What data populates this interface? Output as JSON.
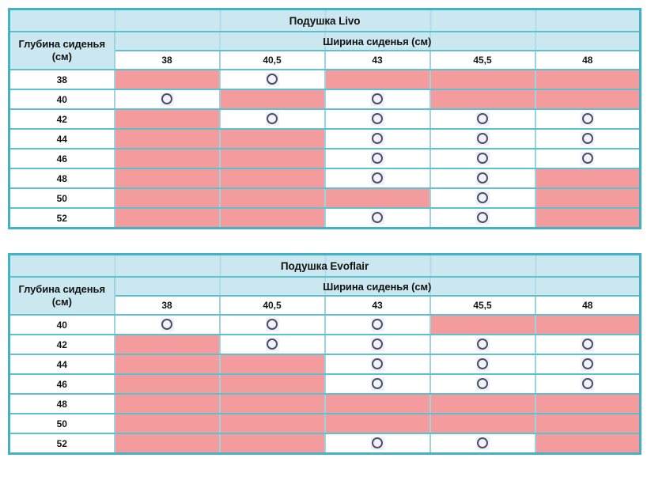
{
  "colors": {
    "header_bg": "#cbe7f0",
    "unavailable_bg": "#f49b9e",
    "border_outer": "#43b2c4",
    "border_inner_horizontal": "#5cc2cf",
    "border_inner_vertical": "#9bd4de",
    "circle_border": "#4f4f63",
    "circle_fill": "#f1f2fb",
    "text": "#131313"
  },
  "legend": {
    "available_marker": "circle-outline",
    "unavailable_marker": "pink-filled-cell"
  },
  "tables": [
    {
      "id": "livo",
      "title": "Подушка Livo",
      "depth_header": "Глубина сиденья (см)",
      "width_header": "Ширина сиденья (см)",
      "width_values": [
        "38",
        "40,5",
        "43",
        "45,5",
        "48"
      ],
      "rows": [
        {
          "depth": "38",
          "cells": [
            "unavailable",
            "available",
            "unavailable",
            "unavailable",
            "unavailable"
          ]
        },
        {
          "depth": "40",
          "cells": [
            "available",
            "unavailable",
            "available",
            "unavailable",
            "unavailable"
          ]
        },
        {
          "depth": "42",
          "cells": [
            "unavailable",
            "available",
            "available",
            "available",
            "available"
          ]
        },
        {
          "depth": "44",
          "cells": [
            "unavailable",
            "unavailable",
            "available",
            "available",
            "available"
          ]
        },
        {
          "depth": "46",
          "cells": [
            "unavailable",
            "unavailable",
            "available",
            "available",
            "available"
          ]
        },
        {
          "depth": "48",
          "cells": [
            "unavailable",
            "unavailable",
            "available",
            "available",
            "unavailable"
          ]
        },
        {
          "depth": "50",
          "cells": [
            "unavailable",
            "unavailable",
            "unavailable",
            "available",
            "unavailable"
          ]
        },
        {
          "depth": "52",
          "cells": [
            "unavailable",
            "unavailable",
            "available",
            "available",
            "unavailable"
          ]
        }
      ]
    },
    {
      "id": "evoflair",
      "title": "Подушка Evoflair",
      "depth_header": "Глубина сиденья (см)",
      "width_header": "Ширина сиденья (см)",
      "width_values": [
        "38",
        "40,5",
        "43",
        "45,5",
        "48"
      ],
      "rows": [
        {
          "depth": "40",
          "cells": [
            "available",
            "available",
            "available",
            "unavailable",
            "unavailable"
          ]
        },
        {
          "depth": "42",
          "cells": [
            "unavailable",
            "available",
            "available",
            "available",
            "available"
          ]
        },
        {
          "depth": "44",
          "cells": [
            "unavailable",
            "unavailable",
            "available",
            "available",
            "available"
          ]
        },
        {
          "depth": "46",
          "cells": [
            "unavailable",
            "unavailable",
            "available",
            "available",
            "available"
          ]
        },
        {
          "depth": "48",
          "cells": [
            "unavailable",
            "unavailable",
            "unavailable",
            "unavailable",
            "unavailable"
          ]
        },
        {
          "depth": "50",
          "cells": [
            "unavailable",
            "unavailable",
            "unavailable",
            "unavailable",
            "unavailable"
          ]
        },
        {
          "depth": "52",
          "cells": [
            "unavailable",
            "unavailable",
            "available",
            "available",
            "unavailable"
          ]
        }
      ]
    }
  ]
}
